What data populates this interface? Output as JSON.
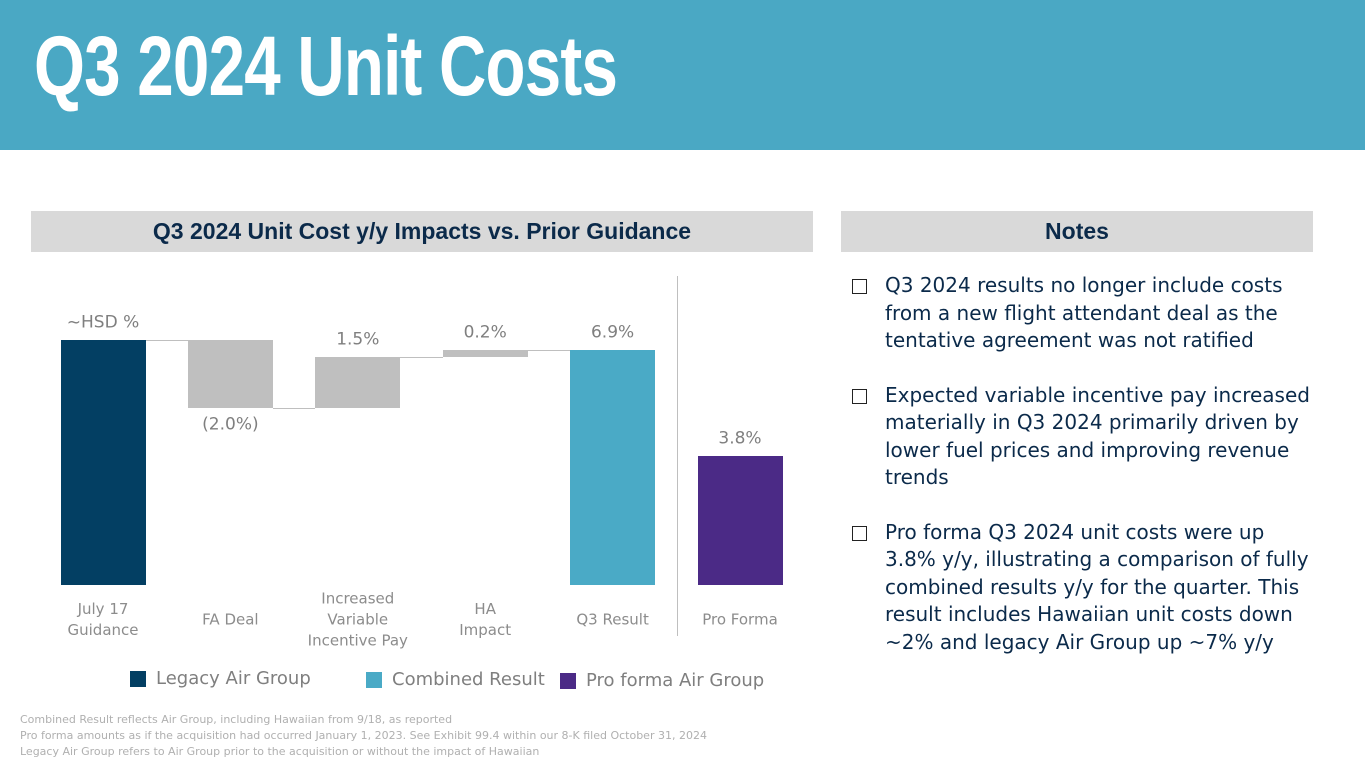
{
  "header": {
    "title": "Q3 2024 Unit Costs"
  },
  "chart_data": {
    "type": "waterfall",
    "title": "Q3 2024 Unit Cost y/y Impacts vs. Prior Guidance",
    "categories": [
      "July 17\nGuidance",
      "FA Deal",
      "Increased\nVariable\nIncentive Pay",
      "HA\nImpact",
      "Q3 Result",
      "Pro Forma"
    ],
    "values": [
      7.2,
      -2.0,
      1.5,
      0.2,
      6.9,
      3.8
    ],
    "value_labels": [
      "~HSD %",
      "(2.0%)",
      "1.5%",
      "0.2%",
      "6.9%",
      "3.8%"
    ],
    "measure": [
      "total",
      "relative",
      "relative",
      "relative",
      "total",
      "total"
    ],
    "colors": [
      "#033f63",
      "#bfbfbf",
      "#bfbfbf",
      "#bfbfbf",
      "#4aaac6",
      "#4b2a86"
    ],
    "legend": [
      {
        "name": "Legacy Air Group",
        "color": "#033f63"
      },
      {
        "name": "Combined Result",
        "color": "#4aaac6"
      },
      {
        "name": "Pro forma Air Group",
        "color": "#4b2a86"
      }
    ]
  },
  "notes": {
    "title": "Notes",
    "items": [
      "Q3 2024 results no longer include costs from a new flight attendant deal as the tentative agreement was not ratified",
      "Expected variable incentive pay increased materially in Q3 2024 primarily driven by lower fuel prices and improving revenue trends",
      "Pro forma Q3 2024 unit costs were up 3.8% y/y, illustrating a comparison of fully combined results y/y for the quarter. This result includes Hawaiian unit costs down ~2% and legacy Air Group up ~7% y/y"
    ]
  },
  "footnotes": [
    "Combined Result reflects Air Group, including Hawaiian from 9/18, as reported",
    "Pro forma amounts as if the acquisition had occurred January 1, 2023. See Exhibit 99.4 within our 8-K filed October 31, 2024",
    "Legacy Air Group refers to Air Group prior to the acquisition or without the impact of Hawaiian"
  ]
}
